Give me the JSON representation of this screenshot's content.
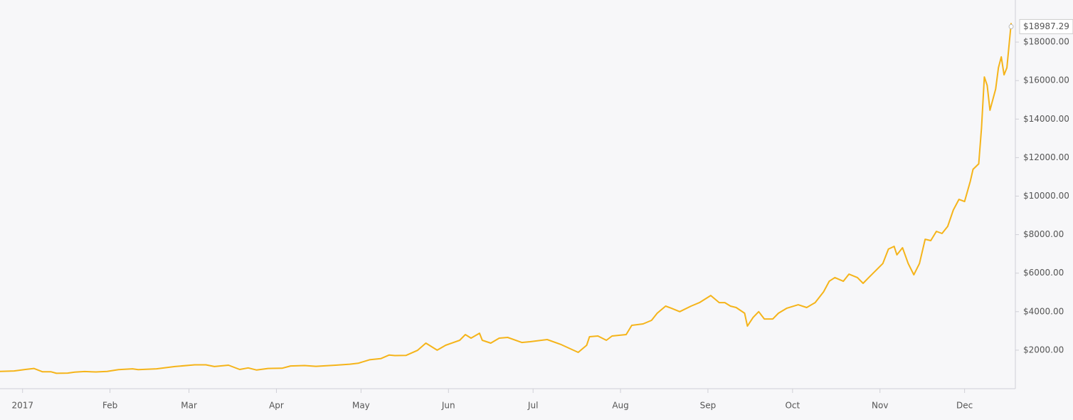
{
  "chart_data": {
    "type": "line",
    "color": "#f5b41a",
    "x": [
      -8,
      -3,
      1,
      4,
      7,
      10,
      12,
      16,
      18.5,
      22,
      26,
      30,
      34,
      39,
      41,
      47.5,
      54,
      61,
      65,
      68,
      73,
      77,
      80,
      83,
      87,
      92,
      95,
      100,
      104,
      111,
      116,
      119,
      123,
      127,
      130,
      132,
      136,
      140,
      143,
      147,
      150,
      155,
      157,
      159,
      162,
      163,
      166,
      169,
      172,
      177,
      180,
      186,
      191,
      197,
      200,
      201,
      204,
      207,
      209,
      214,
      216,
      220,
      223,
      225,
      228,
      230,
      233,
      237,
      240,
      244,
      247,
      249,
      251,
      253,
      256,
      257,
      259,
      261,
      263,
      266,
      268,
      271,
      275,
      278,
      281,
      284,
      286,
      288,
      291,
      293,
      296,
      298,
      300,
      302,
      305,
      307,
      309,
      310,
      312,
      314,
      316,
      318,
      320,
      322,
      324,
      326,
      328,
      330,
      332,
      334,
      336,
      337,
      339,
      340,
      341,
      342,
      343,
      345,
      346,
      347,
      348,
      349,
      350.5
    ],
    "values": [
      900,
      920,
      1000,
      1050,
      880,
      880,
      800,
      810,
      860,
      890,
      870,
      900,
      990,
      1030,
      990,
      1030,
      1150,
      1240,
      1240,
      1150,
      1220,
      1000,
      1080,
      970,
      1050,
      1060,
      1180,
      1200,
      1160,
      1220,
      1270,
      1320,
      1500,
      1560,
      1750,
      1720,
      1730,
      1990,
      2366,
      2000,
      2255,
      2514,
      2810,
      2625,
      2880,
      2514,
      2366,
      2625,
      2662,
      2400,
      2440,
      2550,
      2290,
      1885,
      2255,
      2700,
      2736,
      2514,
      2736,
      2810,
      3290,
      3364,
      3550,
      3920,
      4290,
      4180,
      4000,
      4290,
      4470,
      4840,
      4470,
      4470,
      4290,
      4215,
      3920,
      3250,
      3700,
      4000,
      3620,
      3620,
      3920,
      4180,
      4360,
      4215,
      4470,
      5030,
      5580,
      5770,
      5580,
      5950,
      5770,
      5470,
      5770,
      6060,
      6500,
      7250,
      7390,
      6950,
      7320,
      6500,
      5915,
      6500,
      7760,
      7690,
      8170,
      8060,
      8430,
      9280,
      9830,
      9720,
      10760,
      11390,
      11680,
      13530,
      16190,
      15750,
      14460,
      15560,
      16670,
      17230,
      16300,
      16670,
      18987.29
    ],
    "value_labels": [
      null,
      null,
      null,
      null,
      null,
      null,
      null,
      null,
      null,
      null,
      null,
      null,
      null,
      null,
      null,
      null,
      null,
      null,
      null,
      null,
      null,
      null,
      null,
      null,
      null,
      null,
      null,
      null,
      null,
      null,
      null,
      null,
      null,
      null,
      null,
      null,
      null,
      null,
      null,
      null,
      null,
      null,
      null,
      null,
      null,
      null,
      null,
      null,
      null,
      null,
      null,
      null,
      null,
      null,
      null,
      null,
      null,
      null,
      null,
      null,
      null,
      null,
      null,
      null,
      null,
      null,
      null,
      null,
      null,
      null,
      null,
      null,
      null,
      null,
      null,
      null,
      null,
      null,
      null,
      null,
      null,
      null,
      null,
      null,
      null,
      null,
      null,
      null,
      null,
      null,
      null,
      null,
      null,
      null,
      null,
      null,
      null,
      null,
      null,
      null,
      null,
      null,
      null,
      null,
      null,
      null,
      null,
      null,
      null,
      null,
      null,
      null,
      null,
      null,
      null,
      null,
      null,
      null,
      null,
      null,
      null,
      null,
      "$18987.29"
    ],
    "xlim": [
      -8,
      352
    ],
    "xticks": [
      {
        "value": 0,
        "label": "2017"
      },
      {
        "value": 31,
        "label": "Feb"
      },
      {
        "value": 59,
        "label": "Mar"
      },
      {
        "value": 90,
        "label": "Apr"
      },
      {
        "value": 120,
        "label": "May"
      },
      {
        "value": 151,
        "label": "Jun"
      },
      {
        "value": 181,
        "label": "Jul"
      },
      {
        "value": 212,
        "label": "Aug"
      },
      {
        "value": 243,
        "label": "Sep"
      },
      {
        "value": 273,
        "label": "Oct"
      },
      {
        "value": 304,
        "label": "Nov"
      },
      {
        "value": 334,
        "label": "Dec"
      }
    ],
    "ylim": [
      0,
      20185
    ],
    "yticks": [
      {
        "value": 2000,
        "label": "$2000.00"
      },
      {
        "value": 4000,
        "label": "$4000.00"
      },
      {
        "value": 6000,
        "label": "$6000.00"
      },
      {
        "value": 8000,
        "label": "$8000.00"
      },
      {
        "value": 10000,
        "label": "$10000.00"
      },
      {
        "value": 12000,
        "label": "$12000.00"
      },
      {
        "value": 14000,
        "label": "$14000.00"
      },
      {
        "value": 16000,
        "label": "$16000.00"
      },
      {
        "value": 18000,
        "label": "$18000.00"
      }
    ]
  }
}
